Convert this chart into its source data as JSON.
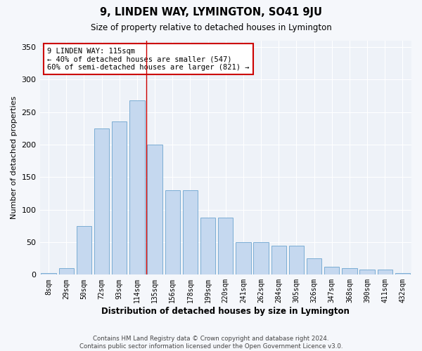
{
  "title": "9, LINDEN WAY, LYMINGTON, SO41 9JU",
  "subtitle": "Size of property relative to detached houses in Lymington",
  "xlabel": "Distribution of detached houses by size in Lymington",
  "ylabel": "Number of detached properties",
  "bar_color": "#c5d8ef",
  "bar_edge_color": "#7badd4",
  "background_color": "#eef2f8",
  "fig_background_color": "#f5f7fb",
  "grid_color": "#ffffff",
  "categories": [
    "8sqm",
    "29sqm",
    "50sqm",
    "72sqm",
    "93sqm",
    "114sqm",
    "135sqm",
    "156sqm",
    "178sqm",
    "199sqm",
    "220sqm",
    "241sqm",
    "262sqm",
    "284sqm",
    "305sqm",
    "326sqm",
    "347sqm",
    "368sqm",
    "390sqm",
    "411sqm",
    "432sqm"
  ],
  "values": [
    2,
    10,
    75,
    225,
    235,
    268,
    200,
    130,
    130,
    88,
    88,
    50,
    50,
    45,
    45,
    25,
    12,
    10,
    8,
    8,
    2
  ],
  "red_line_x": 5.5,
  "annotation_text": "9 LINDEN WAY: 115sqm\n← 40% of detached houses are smaller (547)\n60% of semi-detached houses are larger (821) →",
  "annotation_box_color": "#ffffff",
  "annotation_border_color": "#cc0000",
  "ylim": [
    0,
    360
  ],
  "yticks": [
    0,
    50,
    100,
    150,
    200,
    250,
    300,
    350
  ],
  "footer_line1": "Contains HM Land Registry data © Crown copyright and database right 2024.",
  "footer_line2": "Contains public sector information licensed under the Open Government Licence v3.0."
}
